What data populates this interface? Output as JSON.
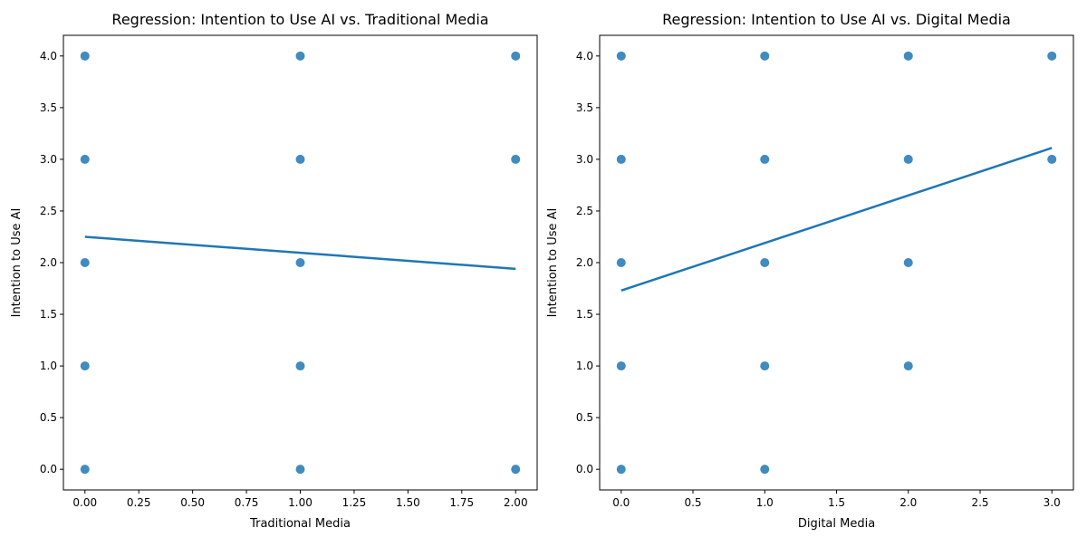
{
  "chart_data": [
    {
      "type": "scatter",
      "title": "Regression: Intention to Use AI vs. Traditional Media",
      "xlabel": "Traditional Media",
      "ylabel": "Intention to Use AI",
      "xlim": [
        -0.1,
        2.1
      ],
      "ylim": [
        -0.2,
        4.2
      ],
      "xticks": [
        "0.00",
        "0.25",
        "0.50",
        "0.75",
        "1.00",
        "1.25",
        "1.50",
        "1.75",
        "2.00"
      ],
      "xtick_values": [
        0,
        0.25,
        0.5,
        0.75,
        1.0,
        1.25,
        1.5,
        1.75,
        2.0
      ],
      "yticks": [
        "0.0",
        "0.5",
        "1.0",
        "1.5",
        "2.0",
        "2.5",
        "3.0",
        "3.5",
        "4.0"
      ],
      "ytick_values": [
        0,
        0.5,
        1.0,
        1.5,
        2.0,
        2.5,
        3.0,
        3.5,
        4.0
      ],
      "grid": false,
      "points": [
        {
          "x": 0,
          "y": 4
        },
        {
          "x": 0,
          "y": 3
        },
        {
          "x": 0,
          "y": 2
        },
        {
          "x": 0,
          "y": 1
        },
        {
          "x": 0,
          "y": 0
        },
        {
          "x": 1,
          "y": 4
        },
        {
          "x": 1,
          "y": 3
        },
        {
          "x": 1,
          "y": 2
        },
        {
          "x": 1,
          "y": 1
        },
        {
          "x": 1,
          "y": 0
        },
        {
          "x": 2,
          "y": 4
        },
        {
          "x": 2,
          "y": 3
        },
        {
          "x": 2,
          "y": 0
        }
      ],
      "regression_line": {
        "x": [
          0,
          2
        ],
        "y": [
          2.25,
          1.94
        ]
      },
      "color": "#1f77b4"
    },
    {
      "type": "scatter",
      "title": "Regression: Intention to Use AI vs. Digital Media",
      "xlabel": "Digital Media",
      "ylabel": "Intention to Use AI",
      "xlim": [
        -0.15,
        3.15
      ],
      "ylim": [
        -0.2,
        4.2
      ],
      "xticks": [
        "0.0",
        "0.5",
        "1.0",
        "1.5",
        "2.0",
        "2.5",
        "3.0"
      ],
      "xtick_values": [
        0,
        0.5,
        1.0,
        1.5,
        2.0,
        2.5,
        3.0
      ],
      "yticks": [
        "0.0",
        "0.5",
        "1.0",
        "1.5",
        "2.0",
        "2.5",
        "3.0",
        "3.5",
        "4.0"
      ],
      "ytick_values": [
        0,
        0.5,
        1.0,
        1.5,
        2.0,
        2.5,
        3.0,
        3.5,
        4.0
      ],
      "grid": false,
      "points": [
        {
          "x": 0,
          "y": 4
        },
        {
          "x": 0,
          "y": 3
        },
        {
          "x": 0,
          "y": 2
        },
        {
          "x": 0,
          "y": 1
        },
        {
          "x": 0,
          "y": 0
        },
        {
          "x": 1,
          "y": 4
        },
        {
          "x": 1,
          "y": 3
        },
        {
          "x": 1,
          "y": 2
        },
        {
          "x": 1,
          "y": 1
        },
        {
          "x": 1,
          "y": 0
        },
        {
          "x": 2,
          "y": 4
        },
        {
          "x": 2,
          "y": 3
        },
        {
          "x": 2,
          "y": 2
        },
        {
          "x": 2,
          "y": 1
        },
        {
          "x": 3,
          "y": 4
        },
        {
          "x": 3,
          "y": 3
        }
      ],
      "regression_line": {
        "x": [
          0,
          3
        ],
        "y": [
          1.73,
          3.11
        ]
      },
      "color": "#1f77b4"
    }
  ]
}
